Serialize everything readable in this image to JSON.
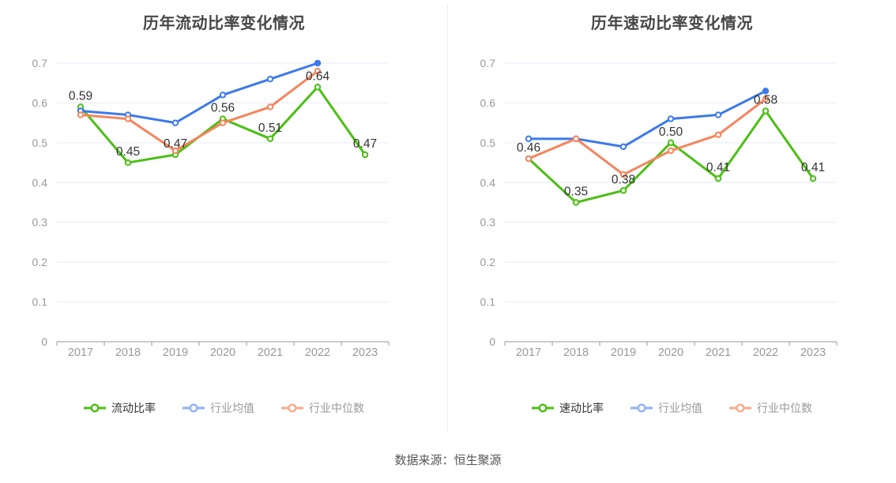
{
  "footer": {
    "source_text": "数据来源：恒生聚源"
  },
  "colors": {
    "grid": "#e6ecf7",
    "axis": "#999999",
    "tick_label": "#999999",
    "data_label": "#333333",
    "title": "#474747",
    "divider": "#ededed",
    "background": "#ffffff"
  },
  "chart_data": [
    {
      "type": "line",
      "title": "历年流动比率变化情况",
      "x": [
        "2017",
        "2018",
        "2019",
        "2020",
        "2021",
        "2022",
        "2023"
      ],
      "ylim": [
        0,
        0.7
      ],
      "yticks": [
        {
          "value": 0,
          "label": "0"
        },
        {
          "value": 0.1,
          "label": "0.1"
        },
        {
          "value": 0.2,
          "label": "0.2"
        },
        {
          "value": 0.3,
          "label": "0.3"
        },
        {
          "value": 0.4,
          "label": "0.4"
        },
        {
          "value": 0.5,
          "label": "0.5"
        },
        {
          "value": 0.6,
          "label": "0.6"
        },
        {
          "value": 0.7,
          "label": "0.7"
        }
      ],
      "grid": true,
      "legend_position": "bottom",
      "series": [
        {
          "name": "流动比率",
          "color": "#4bbf13",
          "legend_color": "#4bbf13",
          "legend_text_color": "#333333",
          "show_labels": true,
          "solid_last_marker": false,
          "values": [
            0.59,
            0.45,
            0.47,
            0.56,
            0.51,
            0.64,
            0.47
          ]
        },
        {
          "name": "行业均值",
          "color": "#3c79ec",
          "legend_color": "#8fb0f2",
          "legend_text_color": "#999999",
          "show_labels": false,
          "solid_last_marker": true,
          "values": [
            0.58,
            0.57,
            0.55,
            0.62,
            0.66,
            0.7,
            null
          ]
        },
        {
          "name": "行业中位数",
          "color": "#f5845c",
          "legend_color": "#f8aa8b",
          "legend_text_color": "#999999",
          "show_labels": false,
          "solid_last_marker": false,
          "values": [
            0.57,
            0.56,
            0.48,
            0.55,
            0.59,
            0.68,
            null
          ]
        }
      ]
    },
    {
      "type": "line",
      "title": "历年速动比率变化情况",
      "x": [
        "2017",
        "2018",
        "2019",
        "2020",
        "2021",
        "2022",
        "2023"
      ],
      "ylim": [
        0,
        0.7
      ],
      "yticks": [
        {
          "value": 0,
          "label": "0"
        },
        {
          "value": 0.1,
          "label": "0.1"
        },
        {
          "value": 0.2,
          "label": "0.2"
        },
        {
          "value": 0.3,
          "label": "0.3"
        },
        {
          "value": 0.4,
          "label": "0.4"
        },
        {
          "value": 0.5,
          "label": "0.5"
        },
        {
          "value": 0.6,
          "label": "0.6"
        },
        {
          "value": 0.7,
          "label": "0.7"
        }
      ],
      "grid": true,
      "legend_position": "bottom",
      "series": [
        {
          "name": "速动比率",
          "color": "#4bbf13",
          "legend_color": "#4bbf13",
          "legend_text_color": "#333333",
          "show_labels": true,
          "solid_last_marker": false,
          "values": [
            0.46,
            0.35,
            0.38,
            0.5,
            0.41,
            0.58,
            0.41
          ]
        },
        {
          "name": "行业均值",
          "color": "#3c79ec",
          "legend_color": "#8fb0f2",
          "legend_text_color": "#999999",
          "show_labels": false,
          "solid_last_marker": true,
          "values": [
            0.51,
            0.51,
            0.49,
            0.56,
            0.57,
            0.63,
            null
          ]
        },
        {
          "name": "行业中位数",
          "color": "#f5845c",
          "legend_color": "#f8aa8b",
          "legend_text_color": "#999999",
          "show_labels": false,
          "solid_last_marker": false,
          "values": [
            0.46,
            0.51,
            0.42,
            0.48,
            0.52,
            0.61,
            null
          ]
        }
      ]
    }
  ]
}
